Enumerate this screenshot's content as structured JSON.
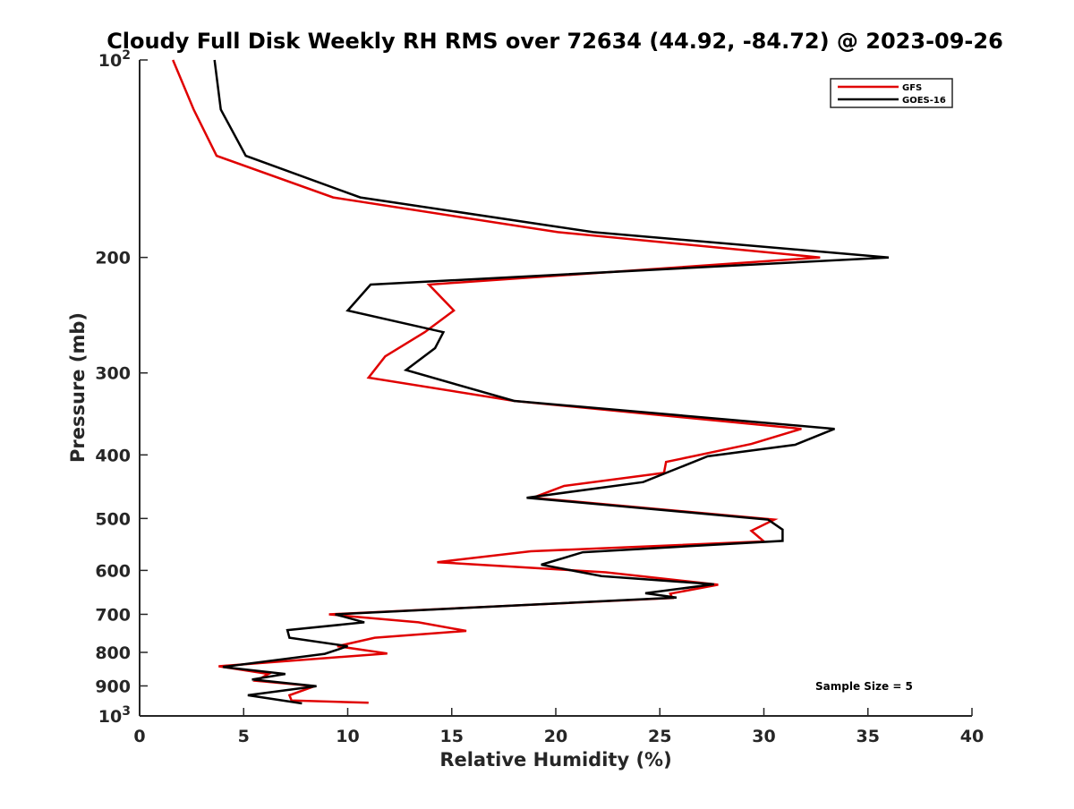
{
  "chart_data": {
    "type": "line",
    "title": "Cloudy Full Disk Weekly RH RMS over 72634 (44.92, -84.72) @ 2023-09-26",
    "xlabel": "Relative Humidity (%)",
    "ylabel": "Pressure (mb)",
    "xlim": [
      0,
      40
    ],
    "ylim": [
      100,
      1000
    ],
    "yscale": "log",
    "y_reversed": true,
    "grid": false,
    "legend_position": "top-right",
    "xticks": [
      "0",
      "5",
      "10",
      "15",
      "20",
      "25",
      "30",
      "35",
      "40"
    ],
    "yticks": [
      {
        "value": 100,
        "label": "10",
        "sup": "2"
      },
      {
        "value": 200,
        "label": "200",
        "sup": ""
      },
      {
        "value": 300,
        "label": "300",
        "sup": ""
      },
      {
        "value": 400,
        "label": "400",
        "sup": ""
      },
      {
        "value": 500,
        "label": "500",
        "sup": ""
      },
      {
        "value": 600,
        "label": "600",
        "sup": ""
      },
      {
        "value": 700,
        "label": "700",
        "sup": ""
      },
      {
        "value": 800,
        "label": "800",
        "sup": ""
      },
      {
        "value": 900,
        "label": "900",
        "sup": ""
      },
      {
        "value": 1000,
        "label": "10",
        "sup": "3"
      }
    ],
    "series": [
      {
        "name": "GFS",
        "color": "#e00000",
        "points": [
          [
            1.6,
            100
          ],
          [
            2.6,
            119
          ],
          [
            3.7,
            140
          ],
          [
            9.3,
            162
          ],
          [
            20.1,
            183
          ],
          [
            32.7,
            200
          ],
          [
            13.9,
            220
          ],
          [
            15.1,
            241
          ],
          [
            13.7,
            260
          ],
          [
            11.8,
            283
          ],
          [
            11.0,
            305
          ],
          [
            18.0,
            331
          ],
          [
            31.8,
            365
          ],
          [
            29.4,
            385
          ],
          [
            25.3,
            410
          ],
          [
            25.2,
            426
          ],
          [
            20.4,
            446
          ],
          [
            18.9,
            465
          ],
          [
            30.5,
            502
          ],
          [
            29.4,
            522
          ],
          [
            30.0,
            542
          ],
          [
            18.8,
            561
          ],
          [
            14.3,
            583
          ],
          [
            22.4,
            604
          ],
          [
            27.8,
            631
          ],
          [
            25.5,
            651
          ],
          [
            25.6,
            661
          ],
          [
            9.1,
            700
          ],
          [
            13.4,
            720
          ],
          [
            15.7,
            742
          ],
          [
            11.3,
            760
          ],
          [
            9.5,
            783
          ],
          [
            11.9,
            803
          ],
          [
            3.8,
            840
          ],
          [
            6.2,
            863
          ],
          [
            5.6,
            884
          ],
          [
            8.4,
            901
          ],
          [
            7.2,
            930
          ],
          [
            7.3,
            947
          ],
          [
            11.0,
            955
          ]
        ]
      },
      {
        "name": "GOES-16",
        "color": "#000000",
        "points": [
          [
            3.6,
            100
          ],
          [
            3.9,
            119
          ],
          [
            5.1,
            140
          ],
          [
            10.6,
            162
          ],
          [
            21.8,
            183
          ],
          [
            36.0,
            200
          ],
          [
            11.1,
            220
          ],
          [
            10.0,
            241
          ],
          [
            14.6,
            260
          ],
          [
            14.2,
            275
          ],
          [
            12.8,
            297
          ],
          [
            18.0,
            331
          ],
          [
            33.4,
            365
          ],
          [
            31.5,
            386
          ],
          [
            27.3,
            402
          ],
          [
            24.2,
            440
          ],
          [
            18.6,
            465
          ],
          [
            30.2,
            502
          ],
          [
            30.9,
            520
          ],
          [
            30.9,
            541
          ],
          [
            21.3,
            563
          ],
          [
            19.3,
            588
          ],
          [
            22.2,
            612
          ],
          [
            27.6,
            630
          ],
          [
            24.3,
            650
          ],
          [
            25.8,
            660
          ],
          [
            9.4,
            700
          ],
          [
            10.8,
            720
          ],
          [
            7.1,
            740
          ],
          [
            7.2,
            760
          ],
          [
            10.0,
            783
          ],
          [
            8.9,
            804
          ],
          [
            4.0,
            842
          ],
          [
            7.0,
            863
          ],
          [
            5.4,
            880
          ],
          [
            8.5,
            901
          ],
          [
            5.2,
            930
          ],
          [
            7.8,
            957
          ]
        ]
      }
    ],
    "annotation": "Sample Size = 5"
  }
}
